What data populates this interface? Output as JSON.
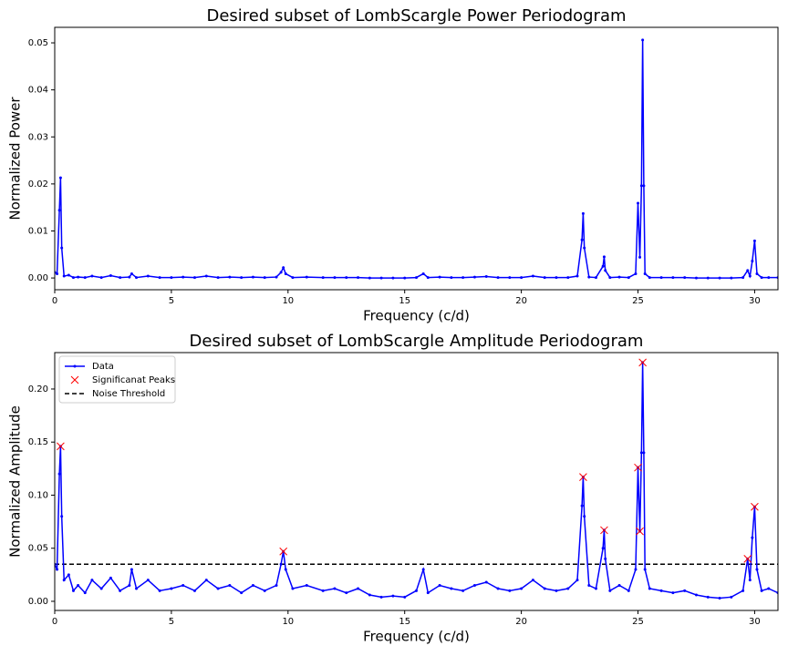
{
  "chart_data": [
    {
      "type": "line",
      "title": "Desired subset of LombScargle Power Periodogram",
      "xlabel": "Frequency (c/d)",
      "ylabel": "Normalized Power",
      "xlim": [
        0,
        31
      ],
      "ylim": [
        -0.0025,
        0.0533
      ],
      "xticks": [
        0,
        5,
        10,
        15,
        20,
        25,
        30
      ],
      "yticks": [
        {
          "value": 0,
          "label": "0.00"
        },
        0.01,
        0.02,
        0.03,
        0.04,
        0.05
      ],
      "x": [
        0,
        0.1,
        0.2,
        0.25,
        0.3,
        0.4,
        0.6,
        0.8,
        1.0,
        1.3,
        1.6,
        2.0,
        2.4,
        2.8,
        3.2,
        3.3,
        3.5,
        4.0,
        4.5,
        5.0,
        5.5,
        6.0,
        6.5,
        7.0,
        7.5,
        8.0,
        8.5,
        9.0,
        9.5,
        9.7,
        9.8,
        9.9,
        10.2,
        10.8,
        11.5,
        12.0,
        12.5,
        13.0,
        13.5,
        14.0,
        14.5,
        15.0,
        15.5,
        15.8,
        16.0,
        16.5,
        17.0,
        17.5,
        18.0,
        18.5,
        19.0,
        19.5,
        20.0,
        20.5,
        21.0,
        21.5,
        22.0,
        22.4,
        22.6,
        22.65,
        22.7,
        22.9,
        23.2,
        23.5,
        23.55,
        23.6,
        23.8,
        24.2,
        24.6,
        24.9,
        25.0,
        25.08,
        25.15,
        25.2,
        25.25,
        25.3,
        25.5,
        26.0,
        26.5,
        27.0,
        27.5,
        28.0,
        28.5,
        29.0,
        29.5,
        29.7,
        29.8,
        29.9,
        30.0,
        30.1,
        30.3,
        30.6,
        31.0
      ],
      "series": [
        {
          "color": "#0000ff",
          "values": [
            0.0012,
            0.0009,
            0.0144,
            0.0213,
            0.0064,
            0.0004,
            0.0006,
            0.0001,
            0.0002,
            0.0001,
            0.0004,
            0.0001,
            0.0005,
            0.0001,
            0.0002,
            0.0009,
            0.0001,
            0.0004,
            0.0001,
            0.0001,
            0.0002,
            0.0001,
            0.0004,
            0.0001,
            0.0002,
            0.0001,
            0.0002,
            0.0001,
            0.0002,
            0.0012,
            0.0022,
            0.0009,
            0.0001,
            0.0002,
            0.0001,
            0.0001,
            0.0001,
            0.0001,
            0,
            0,
            0,
            0,
            0.0001,
            0.0009,
            0.0001,
            0.0002,
            0.0001,
            0.0001,
            0.0002,
            0.0003,
            0.0001,
            0.0001,
            0.0001,
            0.0004,
            0.0001,
            0.0001,
            0.0001,
            0.0004,
            0.0081,
            0.0137,
            0.0064,
            0.0002,
            0.0001,
            0.0025,
            0.0045,
            0.0016,
            0.0001,
            0.0002,
            0.0001,
            0.0009,
            0.0159,
            0.0044,
            0.0196,
            0.0506,
            0.0196,
            0.0009,
            0.0001,
            0.0001,
            0.0001,
            0.0001,
            0,
            0,
            0,
            0,
            0.0001,
            0.0016,
            0.0004,
            0.0036,
            0.0079,
            0.0009,
            0.0001,
            0.0001,
            0.0001
          ]
        }
      ]
    },
    {
      "type": "line",
      "title": "Desired subset of LombScargle Amplitude Periodogram",
      "xlabel": "Frequency (c/d)",
      "ylabel": "Normalized Amplitude",
      "xlim": [
        0,
        31
      ],
      "ylim": [
        -0.0086,
        0.2343
      ],
      "xticks": [
        0,
        5,
        10,
        15,
        20,
        25,
        30
      ],
      "yticks": [
        {
          "value": 0,
          "label": "0.00"
        },
        0.05,
        {
          "value": 0.1,
          "label": "0.10"
        },
        0.15,
        {
          "value": 0.2,
          "label": "0.20"
        }
      ],
      "legend": "upper left",
      "x": [
        0,
        0.1,
        0.2,
        0.25,
        0.3,
        0.4,
        0.6,
        0.8,
        1.0,
        1.3,
        1.6,
        2.0,
        2.4,
        2.8,
        3.2,
        3.3,
        3.5,
        4.0,
        4.5,
        5.0,
        5.5,
        6.0,
        6.5,
        7.0,
        7.5,
        8.0,
        8.5,
        9.0,
        9.5,
        9.7,
        9.8,
        9.9,
        10.2,
        10.8,
        11.5,
        12.0,
        12.5,
        13.0,
        13.5,
        14.0,
        14.5,
        15.0,
        15.5,
        15.8,
        16.0,
        16.5,
        17.0,
        17.5,
        18.0,
        18.5,
        19.0,
        19.5,
        20.0,
        20.5,
        21.0,
        21.5,
        22.0,
        22.4,
        22.6,
        22.65,
        22.7,
        22.9,
        23.2,
        23.5,
        23.55,
        23.6,
        23.8,
        24.2,
        24.6,
        24.9,
        25.0,
        25.08,
        25.15,
        25.2,
        25.25,
        25.3,
        25.5,
        26.0,
        26.5,
        27.0,
        27.5,
        28.0,
        28.5,
        29.0,
        29.5,
        29.7,
        29.8,
        29.9,
        30.0,
        30.1,
        30.3,
        30.6,
        31.0
      ],
      "series": [
        {
          "name": "Data",
          "color": "#0000ff",
          "values": [
            0.035,
            0.03,
            0.12,
            0.146,
            0.08,
            0.02,
            0.025,
            0.01,
            0.015,
            0.008,
            0.02,
            0.012,
            0.022,
            0.01,
            0.015,
            0.03,
            0.012,
            0.02,
            0.01,
            0.012,
            0.015,
            0.01,
            0.02,
            0.012,
            0.015,
            0.008,
            0.015,
            0.01,
            0.015,
            0.035,
            0.047,
            0.03,
            0.012,
            0.015,
            0.01,
            0.012,
            0.008,
            0.012,
            0.006,
            0.004,
            0.005,
            0.004,
            0.01,
            0.03,
            0.008,
            0.015,
            0.012,
            0.01,
            0.015,
            0.018,
            0.012,
            0.01,
            0.012,
            0.02,
            0.012,
            0.01,
            0.012,
            0.02,
            0.09,
            0.117,
            0.08,
            0.015,
            0.012,
            0.05,
            0.067,
            0.04,
            0.01,
            0.015,
            0.01,
            0.03,
            0.126,
            0.066,
            0.14,
            0.225,
            0.14,
            0.03,
            0.012,
            0.01,
            0.008,
            0.01,
            0.006,
            0.004,
            0.003,
            0.004,
            0.01,
            0.04,
            0.02,
            0.06,
            0.089,
            0.03,
            0.01,
            0.012,
            0.008
          ]
        }
      ],
      "peaks": {
        "name": "Significanat Peaks",
        "color": "#ff0000",
        "x": [
          0.25,
          9.8,
          22.65,
          23.55,
          25.0,
          25.08,
          25.2,
          29.7,
          30.0
        ],
        "values": [
          0.146,
          0.047,
          0.117,
          0.067,
          0.126,
          0.066,
          0.225,
          0.04,
          0.089
        ]
      },
      "threshold": {
        "name": "Noise Threshold",
        "color": "#000000",
        "value": 0.035
      }
    }
  ]
}
